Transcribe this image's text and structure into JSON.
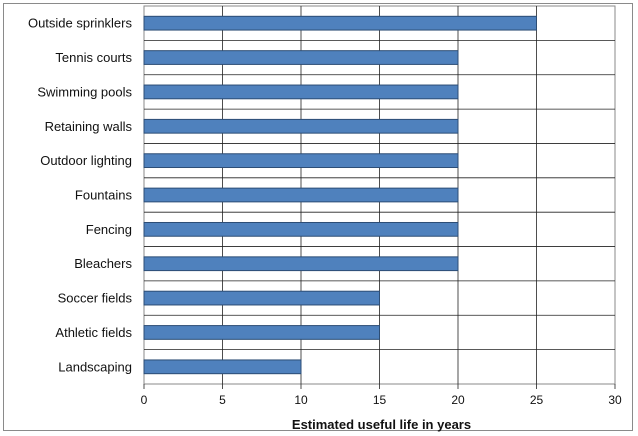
{
  "chart_data": {
    "type": "bar",
    "orientation": "horizontal",
    "categories": [
      "Outside sprinklers",
      "Tennis courts",
      "Swimming pools",
      "Retaining walls",
      "Outdoor lighting",
      "Fountains",
      "Fencing",
      "Bleachers",
      "Soccer fields",
      "Athletic fields",
      "Landscaping"
    ],
    "values": [
      25,
      20,
      20,
      20,
      20,
      20,
      20,
      20,
      15,
      15,
      10
    ],
    "title": "",
    "xlabel": "Estimated useful life in years",
    "ylabel": "",
    "xlim": [
      0,
      30
    ],
    "xticks": [
      "0",
      "5",
      "10",
      "15",
      "20",
      "25",
      "30"
    ],
    "grid": true,
    "legend": "none",
    "colors": {
      "bar_fill": "#4f81bd",
      "bar_stroke": "#2c4d75",
      "grid": "#222222",
      "plot_border": "#8a8a8a"
    }
  }
}
